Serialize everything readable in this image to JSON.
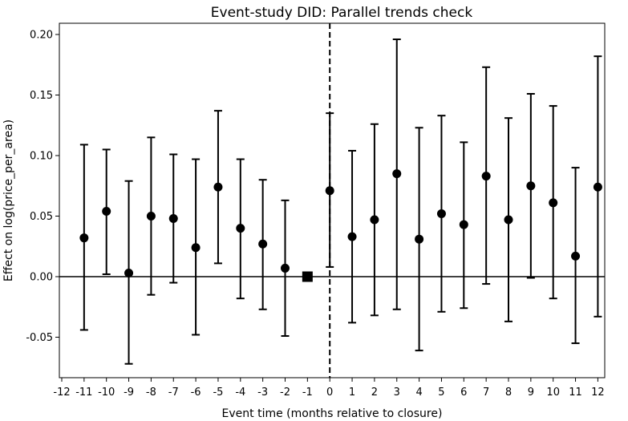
{
  "chart_data": {
    "type": "scatter",
    "subtype": "event-study errorbar",
    "title": "Event-study DID: Parallel trends check",
    "xlabel": "Event time (months relative to closure)",
    "ylabel": "Effect on log(price_per_area)",
    "xlim": [
      -12,
      12
    ],
    "ylim": [
      -0.085,
      0.21
    ],
    "xticks": [
      -12,
      -11,
      -10,
      -9,
      -8,
      -7,
      -6,
      -5,
      -4,
      -3,
      -2,
      -1,
      0,
      1,
      2,
      3,
      4,
      5,
      6,
      7,
      8,
      9,
      10,
      11,
      12
    ],
    "yticks": [
      -0.05,
      0.0,
      0.05,
      0.1,
      0.15,
      0.2
    ],
    "ytick_labels": [
      "-0.05",
      "0.00",
      "0.05",
      "0.10",
      "0.15",
      "0.20"
    ],
    "reference_lines": {
      "horizontal_y": 0,
      "vertical_x": 0,
      "vertical_style": "dashed"
    },
    "series": [
      {
        "x": [
          -11,
          -10,
          -9,
          -8,
          -7,
          -6,
          -5,
          -4,
          -3,
          -2,
          0,
          1,
          2,
          3,
          4,
          5,
          6,
          7,
          8,
          9,
          10,
          11,
          12
        ],
        "y": [
          0.032,
          0.054,
          0.003,
          0.05,
          0.048,
          0.024,
          0.074,
          0.04,
          0.027,
          0.007,
          0.071,
          0.033,
          0.047,
          0.085,
          0.031,
          0.052,
          0.043,
          0.083,
          0.047,
          0.075,
          0.061,
          0.017,
          0.074
        ],
        "lower": [
          -0.044,
          0.002,
          -0.072,
          -0.015,
          -0.005,
          -0.048,
          0.011,
          -0.018,
          -0.027,
          -0.049,
          0.008,
          -0.038,
          -0.032,
          -0.027,
          -0.061,
          -0.029,
          -0.026,
          -0.006,
          -0.037,
          -0.001,
          -0.018,
          -0.055,
          -0.033
        ],
        "upper": [
          0.109,
          0.105,
          0.079,
          0.115,
          0.101,
          0.097,
          0.137,
          0.097,
          0.08,
          0.063,
          0.135,
          0.104,
          0.126,
          0.196,
          0.123,
          0.133,
          0.111,
          0.173,
          0.131,
          0.151,
          0.141,
          0.09,
          0.182
        ],
        "marker": "circle"
      },
      {
        "x": [
          -1
        ],
        "y": [
          0.0
        ],
        "marker": "square"
      }
    ],
    "colors": {
      "marker": "#000000",
      "line": "#000000",
      "background": "#ffffff"
    },
    "grid": false
  }
}
